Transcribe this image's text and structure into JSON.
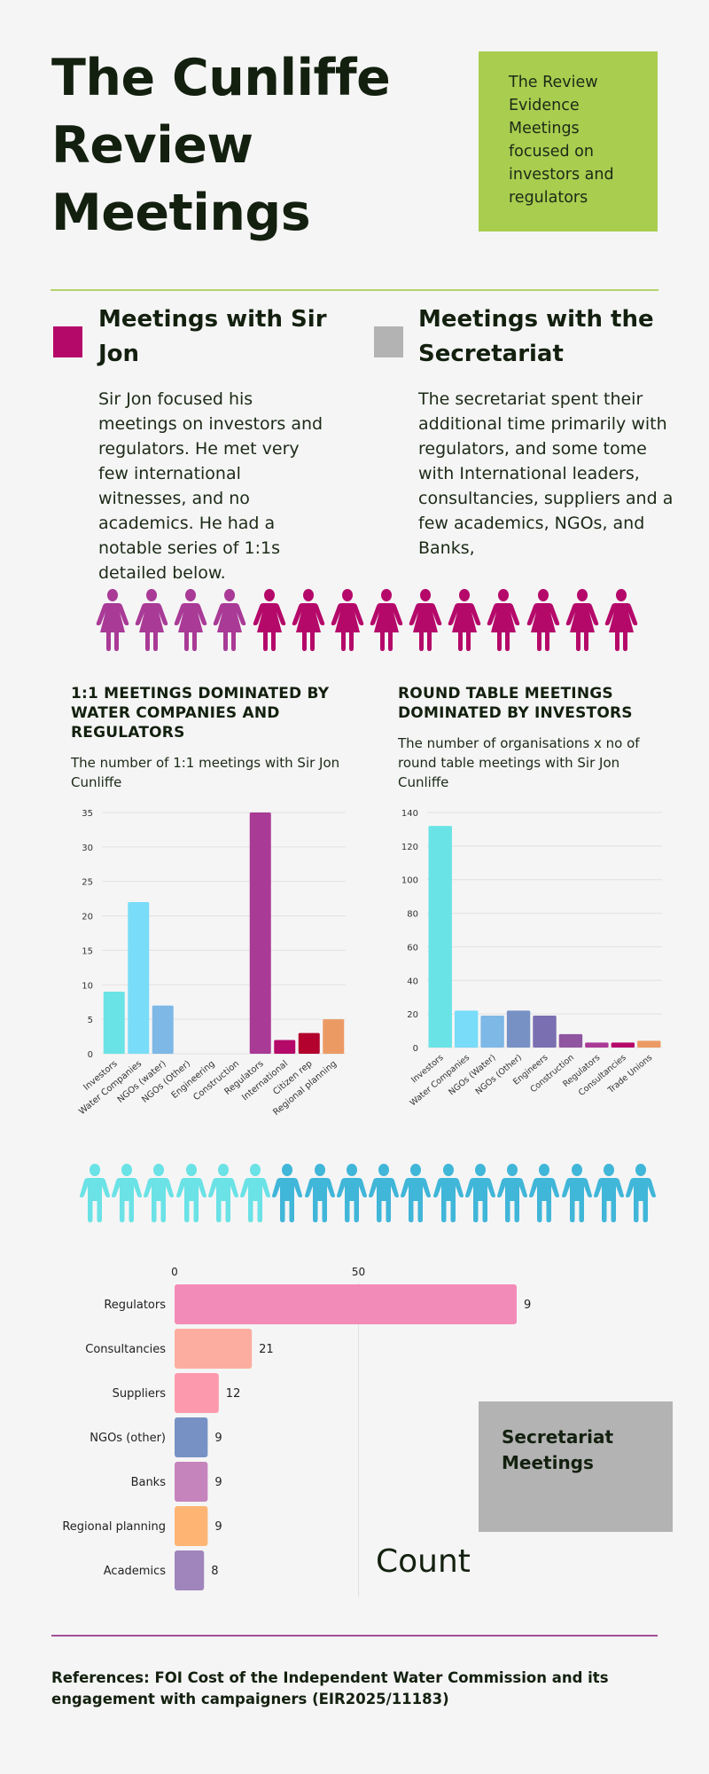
{
  "header": {
    "title": "The Cunliffe Review Meetings",
    "callout": "The Review Evidence Meetings focused on investors and regulators"
  },
  "sections": {
    "jon": {
      "heading": "Meetings with Sir Jon",
      "body": "Sir Jon focused his meetings on investors and regulators. He met very few international witnesses, and no academics. He had a notable series of 1:1s detailed below.",
      "color": "#b5096a"
    },
    "secretariat": {
      "heading": "Meetings with the Secretariat",
      "body": "The secretariat spent their additional time primarily with regulators, and some tome with International leaders, consultancies, suppliers and a few academics, NGOs, and Banks,",
      "color": "#b3b3b3"
    }
  },
  "pictograms": {
    "female": {
      "icon": "female-person-icon",
      "count": 14,
      "highlighted": 4,
      "highlight_color": "#a93a96",
      "base_color": "#b5096a"
    },
    "male": {
      "icon": "male-person-icon",
      "count": 18,
      "highlighted": 6,
      "highlight_color": "#6ae2e6",
      "base_color": "#40b6d8"
    }
  },
  "secretariat_box": {
    "label": "Secretariat Meetings"
  },
  "count_label": "Count",
  "references": "References: FOI Cost of the Independent Water Commission and its engagement with campaigners (EIR2025/11183)",
  "chart_data": [
    {
      "type": "bar",
      "title": "1:1 MEETINGS DOMINATED BY WATER COMPANIES AND REGULATORS",
      "subtitle": "The number of 1:1 meetings with Sir Jon Cunliffe",
      "xlabel": "",
      "ylabel": "",
      "ylim": [
        0,
        35
      ],
      "yticks": [
        0,
        5,
        10,
        15,
        20,
        25,
        30,
        35
      ],
      "grid": true,
      "categories": [
        "Investors",
        "Water Companies",
        "NGOs (water)",
        "NGOs (Other)",
        "Engineering",
        "Construction",
        "Regulators",
        "International",
        "Citizen rep",
        "Regional planning"
      ],
      "values": [
        9,
        22,
        7,
        0,
        0,
        0,
        35,
        2,
        3,
        5
      ],
      "colors": [
        "#6ae3e6",
        "#79dcf8",
        "#7eb8e6",
        "#7891c4",
        "#7a6fb0",
        "#8f55a0",
        "#a93a96",
        "#b5096a",
        "#b2022d",
        "#ec9a64"
      ]
    },
    {
      "type": "bar",
      "title": "ROUND TABLE MEETINGS DOMINATED BY INVESTORS",
      "subtitle": "The number of organisations x no of round table meetings with Sir Jon Cunliffe",
      "xlabel": "",
      "ylabel": "",
      "ylim": [
        0,
        140
      ],
      "yticks": [
        0,
        20,
        40,
        60,
        80,
        100,
        120,
        140
      ],
      "grid": true,
      "categories": [
        "Investors",
        "Water Companies",
        "NGOs (Water)",
        "NGOs (Other)",
        "Engineers",
        "Construction",
        "Regulators",
        "Consultancies",
        "Trade Unions"
      ],
      "values": [
        132,
        22,
        19,
        22,
        19,
        8,
        3,
        3,
        4
      ],
      "colors": [
        "#6ae3e6",
        "#79dcf8",
        "#7eb8e6",
        "#7891c4",
        "#7a6fb0",
        "#8f55a0",
        "#a93a96",
        "#b5096a",
        "#ec9a64"
      ]
    },
    {
      "type": "bar",
      "orientation": "horizontal",
      "title": "Secretariat Meetings",
      "xlabel": "Count",
      "xlim": [
        0,
        100
      ],
      "xticks": [
        0,
        50
      ],
      "grid": true,
      "categories": [
        "Regulators",
        "Consultancies",
        "Suppliers",
        "NGOs (other)",
        "Banks",
        "Regional planning",
        "Academics"
      ],
      "values": [
        93,
        21,
        12,
        9,
        9,
        9,
        8
      ],
      "colors": [
        "#f38bb8",
        "#fdada0",
        "#fd99ad",
        "#7891c4",
        "#c584bc",
        "#feb574",
        "#9f85bc"
      ]
    }
  ]
}
